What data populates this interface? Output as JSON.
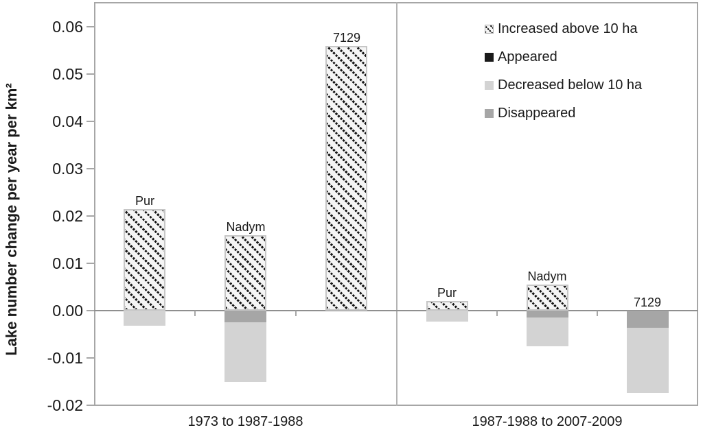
{
  "chart_data": {
    "type": "bar",
    "stacked": true,
    "title": "",
    "ylabel": "Lake number change per year per km²",
    "xlabel": "",
    "ylim": [
      -0.02,
      0.0652
    ],
    "grid": false,
    "legend_position": "top-right-inside",
    "ytick_values": [
      0.06,
      0.05,
      0.04,
      0.03,
      0.02,
      0.01,
      0.0,
      -0.01,
      -0.02
    ],
    "ytick_labels": [
      "0.06",
      "0.05",
      "0.04",
      "0.03",
      "0.02",
      "0.01",
      "0.00",
      "-0.01",
      "-0.02"
    ],
    "panels": [
      {
        "label": "1973 to 1987-1988",
        "categories": [
          "Pur",
          "Nadym",
          "7129"
        ],
        "series": [
          {
            "key": "increased",
            "name": "Increased above 10 ha",
            "values": [
              0.0215,
              0.016,
              0.056
            ]
          },
          {
            "key": "appeared",
            "name": "Appeared",
            "values": [
              0,
              0,
              0
            ]
          },
          {
            "key": "decreased",
            "name": "Decreased below 10 ha",
            "values": [
              -0.0032,
              -0.0126,
              0
            ]
          },
          {
            "key": "disappeared",
            "name": "Disappeared",
            "values": [
              0,
              -0.0025,
              0
            ]
          }
        ]
      },
      {
        "label": "1987-1988 to 2007-2009",
        "categories": [
          "Pur",
          "Nadym",
          "7129"
        ],
        "series": [
          {
            "key": "increased",
            "name": "Increased above 10 ha",
            "values": [
              0.002,
              0.0055,
              0
            ]
          },
          {
            "key": "appeared",
            "name": "Appeared",
            "values": [
              0,
              0,
              0
            ]
          },
          {
            "key": "decreased",
            "name": "Decreased below 10 ha",
            "values": [
              -0.0023,
              -0.0061,
              -0.0138
            ]
          },
          {
            "key": "disappeared",
            "name": "Disappeared",
            "values": [
              0,
              -0.0014,
              -0.0036
            ]
          }
        ]
      }
    ],
    "legend": [
      {
        "label": "Increased above 10 ha",
        "style": "hatched"
      },
      {
        "label": "Appeared",
        "style": "black"
      },
      {
        "label": "Decreased below 10 ha",
        "style": "light-gray"
      },
      {
        "label": "Disappeared",
        "style": "dark-gray"
      }
    ],
    "colors": {
      "hatch_foreground": "#141414",
      "hatch_background": "#f5f5f5",
      "appeared": "#1a1a1a",
      "decreased": "#d3d3d3",
      "disappeared": "#a6a6a6",
      "axis": "#a6a6a6",
      "zero_line": "#8f8f8f"
    }
  }
}
